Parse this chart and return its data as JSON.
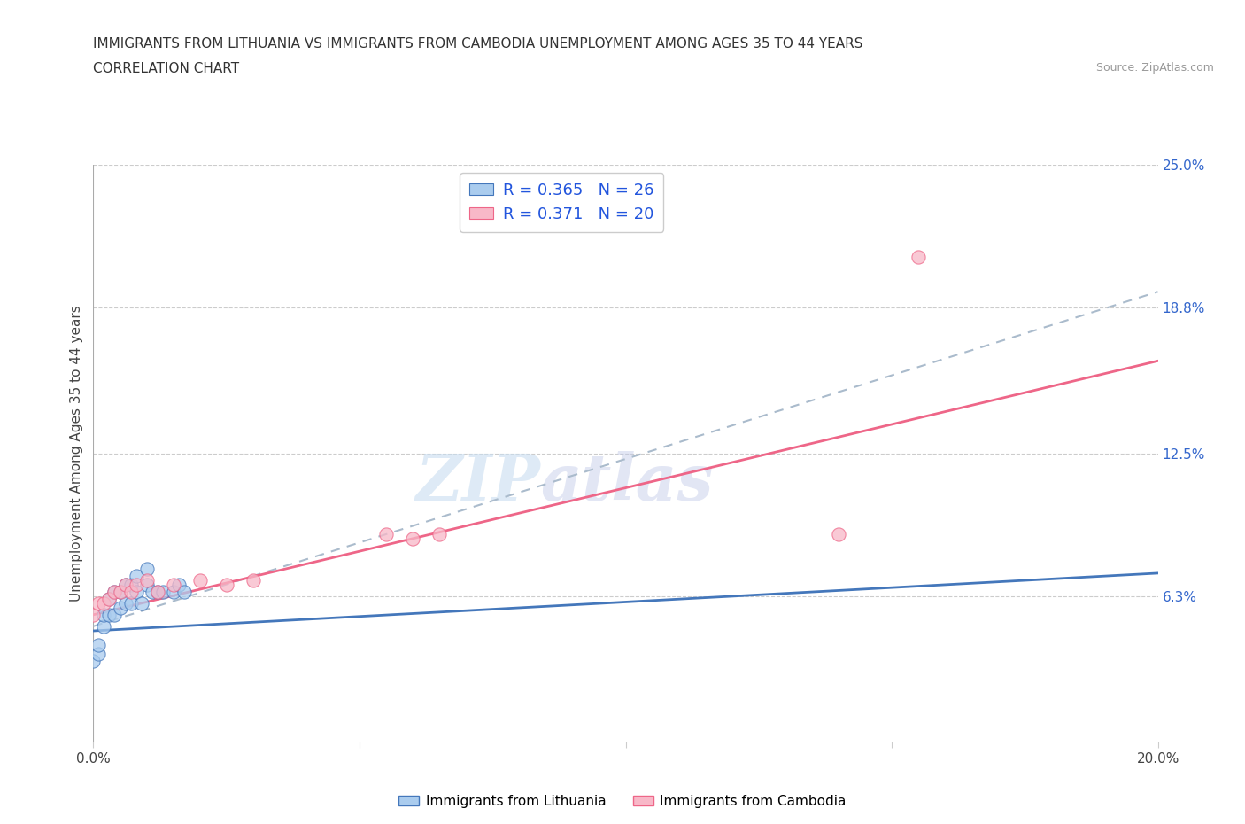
{
  "title_line1": "IMMIGRANTS FROM LITHUANIA VS IMMIGRANTS FROM CAMBODIA UNEMPLOYMENT AMONG AGES 35 TO 44 YEARS",
  "title_line2": "CORRELATION CHART",
  "source": "Source: ZipAtlas.com",
  "ylabel": "Unemployment Among Ages 35 to 44 years",
  "legend_label1": "Immigrants from Lithuania",
  "legend_label2": "Immigrants from Cambodia",
  "R1": 0.365,
  "N1": 26,
  "R2": 0.371,
  "N2": 20,
  "xlim": [
    0.0,
    0.2
  ],
  "ylim": [
    0.0,
    0.25
  ],
  "xtick_values": [
    0.0,
    0.05,
    0.1,
    0.15,
    0.2
  ],
  "ytick_right_labels": [
    "25.0%",
    "18.8%",
    "12.5%",
    "6.3%"
  ],
  "ytick_right_values": [
    0.25,
    0.188,
    0.125,
    0.063
  ],
  "color_lithuania": "#aaccee",
  "color_cambodia": "#f8b8c8",
  "color_trend_lithuania": "#4477bb",
  "color_trend_cambodia": "#ee6688",
  "color_trend_gray": "#aabbcc",
  "scatter_lithuania_x": [
    0.0,
    0.001,
    0.001,
    0.002,
    0.002,
    0.003,
    0.003,
    0.004,
    0.004,
    0.005,
    0.005,
    0.006,
    0.006,
    0.007,
    0.007,
    0.008,
    0.008,
    0.009,
    0.01,
    0.01,
    0.011,
    0.012,
    0.013,
    0.015,
    0.016,
    0.017
  ],
  "scatter_lithuania_y": [
    0.035,
    0.038,
    0.042,
    0.05,
    0.055,
    0.055,
    0.062,
    0.055,
    0.065,
    0.058,
    0.065,
    0.06,
    0.068,
    0.06,
    0.068,
    0.065,
    0.072,
    0.06,
    0.068,
    0.075,
    0.065,
    0.065,
    0.065,
    0.065,
    0.068,
    0.065
  ],
  "scatter_cambodia_x": [
    0.0,
    0.001,
    0.002,
    0.003,
    0.004,
    0.005,
    0.006,
    0.007,
    0.008,
    0.01,
    0.012,
    0.015,
    0.02,
    0.025,
    0.03,
    0.055,
    0.06,
    0.065,
    0.14,
    0.155
  ],
  "scatter_cambodia_y": [
    0.055,
    0.06,
    0.06,
    0.062,
    0.065,
    0.065,
    0.068,
    0.065,
    0.068,
    0.07,
    0.065,
    0.068,
    0.07,
    0.068,
    0.07,
    0.09,
    0.088,
    0.09,
    0.09,
    0.21
  ],
  "trend_lith_x0": 0.0,
  "trend_lith_y0": 0.048,
  "trend_lith_x1": 0.2,
  "trend_lith_y1": 0.073,
  "trend_camb_x0": 0.0,
  "trend_camb_y0": 0.055,
  "trend_camb_x1": 0.2,
  "trend_camb_y1": 0.165,
  "trend_gray_x0": 0.0,
  "trend_gray_y0": 0.05,
  "trend_gray_x1": 0.2,
  "trend_gray_y1": 0.195,
  "watermark_part1": "ZIP",
  "watermark_part2": "atlas",
  "background_color": "#ffffff",
  "grid_color": "#cccccc"
}
